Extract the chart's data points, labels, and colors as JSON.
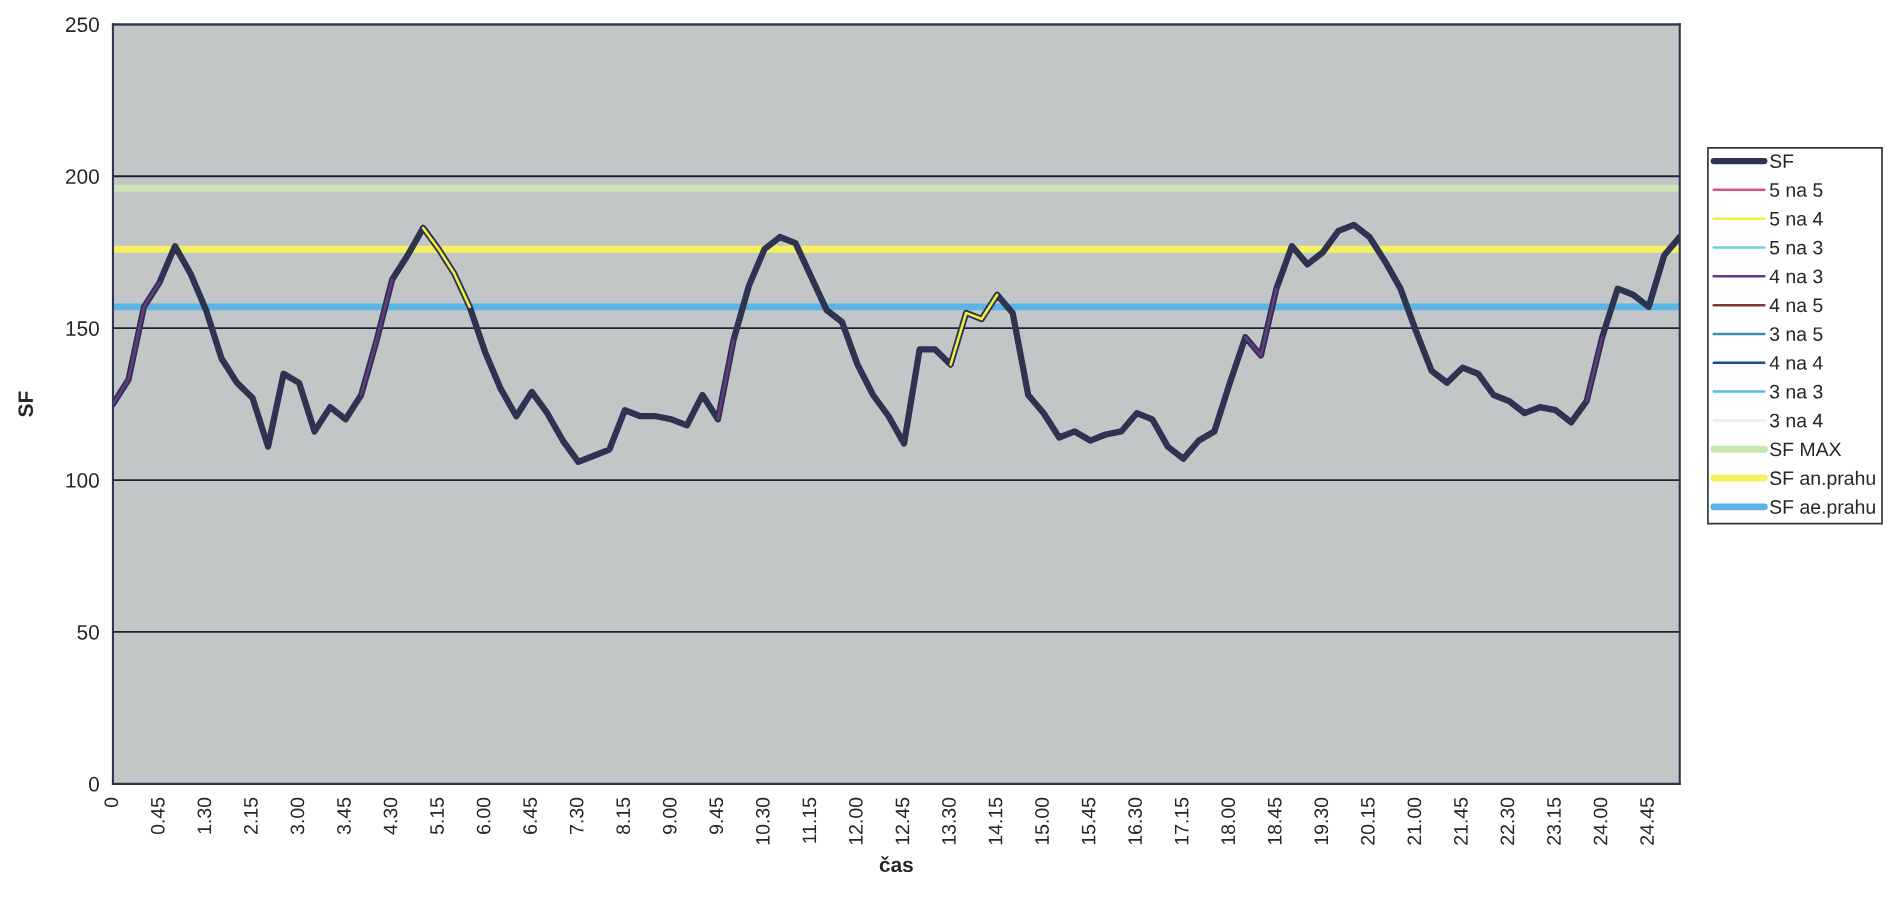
{
  "chart_data": {
    "type": "line",
    "xlabel": "čas",
    "ylabel": "SF",
    "categories": [
      "0",
      null,
      null,
      "0.45",
      null,
      null,
      "1.30",
      null,
      null,
      "2.15",
      null,
      null,
      "3.00",
      null,
      null,
      "3.45",
      null,
      null,
      "4.30",
      null,
      null,
      "5.15",
      null,
      null,
      "6.00",
      null,
      null,
      "6.45",
      null,
      null,
      "7.30",
      null,
      null,
      "8.15",
      null,
      null,
      "9.00",
      null,
      null,
      "9.45",
      null,
      null,
      "10.30",
      null,
      null,
      "11.15",
      null,
      null,
      "12.00",
      null,
      null,
      "12.45",
      null,
      null,
      "13.30",
      null,
      null,
      "14.15",
      null,
      null,
      "15.00",
      null,
      null,
      "15.45",
      null,
      null,
      "16.30",
      null,
      null,
      "17.15",
      null,
      null,
      "18.00",
      null,
      null,
      "18.45",
      null,
      null,
      "19.30",
      null,
      null,
      "20.15",
      null,
      null,
      "21.00",
      null,
      null,
      "21.45",
      null,
      null,
      "22.30",
      null,
      null,
      "23.15",
      null,
      null,
      "24.00",
      null,
      null,
      "24.45",
      null,
      null
    ],
    "series": [
      {
        "name": "SF",
        "color": "#2e3450",
        "values": [
          125,
          133,
          157,
          165,
          177,
          168,
          156,
          140,
          132,
          127,
          111,
          135,
          132,
          116,
          124,
          120,
          128,
          146,
          166,
          174,
          183,
          176,
          168,
          157,
          142,
          130,
          121,
          129,
          122,
          113,
          106,
          108,
          110,
          123,
          121,
          121,
          120,
          118,
          128,
          120,
          146,
          164,
          176,
          180,
          178,
          167,
          156,
          152,
          138,
          128,
          121,
          112,
          143,
          143,
          138,
          155,
          153,
          161,
          155,
          128,
          122,
          114,
          116,
          113,
          115,
          116,
          122,
          120,
          111,
          107,
          113,
          116,
          132,
          147,
          141,
          163,
          177,
          171,
          175,
          182,
          184,
          180,
          172,
          163,
          149,
          136,
          132,
          137,
          135,
          128,
          126,
          122,
          124,
          123,
          119,
          126,
          147,
          163,
          161,
          157,
          174,
          180
        ]
      },
      {
        "name": "5 na 5",
        "color": "#e0507a",
        "values": [
          null,
          null,
          null,
          null,
          null,
          null,
          null,
          null,
          null,
          null,
          null,
          null,
          null,
          null,
          null,
          null,
          null,
          null,
          null,
          null,
          null,
          null,
          null,
          null,
          null,
          null,
          null,
          null,
          null,
          null,
          null,
          null,
          null,
          null,
          null,
          null,
          null,
          null,
          null,
          null,
          null,
          null,
          null,
          null,
          null,
          null,
          null,
          null,
          null,
          null,
          null,
          null,
          null,
          null,
          null,
          null,
          null,
          null,
          null,
          null,
          null,
          null,
          null,
          null,
          null,
          null,
          null,
          null,
          null,
          null,
          null,
          null,
          null,
          null,
          null,
          null,
          null,
          null,
          null,
          null,
          null,
          null,
          null,
          null,
          null,
          null,
          null,
          null,
          null,
          null,
          null,
          null,
          null,
          null,
          null,
          null,
          null,
          null,
          null,
          null,
          null,
          null
        ]
      },
      {
        "name": "5 na 4",
        "color": "#f0f040",
        "values": [
          null,
          null,
          null,
          null,
          null,
          null,
          null,
          null,
          null,
          null,
          null,
          null,
          null,
          null,
          null,
          null,
          null,
          null,
          null,
          null,
          183,
          176,
          168,
          157,
          null,
          null,
          null,
          null,
          null,
          null,
          null,
          null,
          null,
          null,
          null,
          null,
          null,
          null,
          null,
          null,
          null,
          null,
          null,
          null,
          null,
          null,
          null,
          null,
          null,
          null,
          null,
          null,
          null,
          null,
          138,
          155,
          153,
          161,
          null,
          null,
          null,
          null,
          null,
          null,
          null,
          null,
          null,
          null,
          null,
          null,
          null,
          null,
          null,
          null,
          null,
          null,
          null,
          null,
          null,
          null,
          null,
          null,
          null,
          null,
          null,
          null,
          null,
          null,
          null,
          null,
          null,
          null,
          null,
          null,
          null,
          null,
          null,
          null,
          null,
          null,
          null,
          null
        ]
      },
      {
        "name": "5 na 3",
        "color": "#6ccfe0",
        "values": [
          null,
          null,
          null,
          null,
          null,
          null,
          null,
          null,
          null,
          null,
          null,
          null,
          null,
          null,
          null,
          null,
          null,
          null,
          null,
          null,
          null,
          null,
          null,
          null,
          null,
          null,
          null,
          null,
          null,
          null,
          null,
          null,
          null,
          null,
          null,
          null,
          null,
          null,
          null,
          null,
          null,
          null,
          null,
          null,
          null,
          null,
          null,
          null,
          null,
          null,
          null,
          null,
          null,
          null,
          null,
          null,
          null,
          null,
          null,
          null,
          null,
          null,
          null,
          null,
          null,
          null,
          null,
          null,
          null,
          null,
          null,
          null,
          null,
          null,
          null,
          null,
          null,
          null,
          null,
          null,
          null,
          null,
          null,
          null,
          null,
          null,
          null,
          null,
          null,
          null,
          null,
          null,
          null,
          null,
          null,
          null,
          null,
          null,
          null,
          null,
          null,
          null
        ]
      },
      {
        "name": "4 na 3",
        "color": "#6a3a80",
        "values": [
          125,
          133,
          157,
          165,
          null,
          null,
          null,
          null,
          null,
          null,
          null,
          null,
          null,
          null,
          null,
          null,
          128,
          146,
          166,
          null,
          null,
          null,
          null,
          null,
          null,
          null,
          null,
          null,
          null,
          null,
          null,
          null,
          null,
          null,
          null,
          null,
          null,
          null,
          null,
          120,
          146,
          null,
          null,
          null,
          null,
          null,
          null,
          null,
          null,
          null,
          null,
          null,
          null,
          null,
          null,
          null,
          null,
          null,
          null,
          null,
          null,
          null,
          null,
          null,
          null,
          null,
          null,
          null,
          null,
          null,
          null,
          null,
          null,
          147,
          141,
          163,
          null,
          null,
          null,
          null,
          null,
          null,
          null,
          null,
          null,
          null,
          null,
          null,
          null,
          null,
          null,
          null,
          null,
          null,
          null,
          126,
          147,
          null,
          null,
          null,
          null,
          null
        ]
      },
      {
        "name": "4 na 5",
        "color": "#7a3a3a",
        "values": [
          null,
          null,
          null,
          null,
          null,
          null,
          null,
          null,
          null,
          null,
          null,
          null,
          null,
          null,
          null,
          null,
          null,
          null,
          null,
          null,
          null,
          null,
          null,
          null,
          null,
          null,
          null,
          null,
          null,
          null,
          null,
          null,
          null,
          null,
          null,
          null,
          null,
          null,
          null,
          null,
          null,
          null,
          null,
          null,
          null,
          null,
          null,
          null,
          null,
          null,
          null,
          null,
          null,
          null,
          null,
          null,
          null,
          null,
          null,
          null,
          null,
          null,
          null,
          null,
          null,
          null,
          null,
          null,
          null,
          null,
          null,
          null,
          null,
          null,
          null,
          null,
          null,
          null,
          null,
          null,
          null,
          null,
          null,
          null,
          null,
          null,
          null,
          null,
          null,
          null,
          null,
          null,
          null,
          null,
          null,
          null,
          null,
          null,
          null,
          null,
          null,
          null
        ]
      },
      {
        "name": "3 na 5",
        "color": "#3a90a8",
        "values": [
          null,
          null,
          null,
          null,
          null,
          null,
          null,
          null,
          null,
          null,
          null,
          null,
          null,
          null,
          null,
          null,
          null,
          null,
          null,
          null,
          null,
          null,
          null,
          null,
          null,
          null,
          null,
          null,
          null,
          null,
          null,
          null,
          null,
          null,
          null,
          null,
          null,
          null,
          null,
          null,
          null,
          null,
          null,
          null,
          null,
          null,
          null,
          null,
          null,
          null,
          null,
          null,
          null,
          null,
          null,
          null,
          null,
          null,
          null,
          null,
          null,
          null,
          null,
          null,
          null,
          null,
          null,
          null,
          null,
          null,
          null,
          null,
          null,
          null,
          null,
          null,
          null,
          null,
          null,
          null,
          null,
          null,
          null,
          null,
          null,
          null,
          null,
          null,
          null,
          null,
          null,
          null,
          null,
          null,
          null,
          null,
          null,
          null,
          null,
          null,
          null,
          null
        ]
      },
      {
        "name": "4 na 4",
        "color": "#204a90",
        "values": [
          null,
          null,
          null,
          null,
          null,
          null,
          null,
          null,
          null,
          null,
          null,
          null,
          null,
          null,
          null,
          null,
          null,
          null,
          null,
          null,
          null,
          null,
          null,
          null,
          null,
          null,
          null,
          null,
          null,
          null,
          null,
          null,
          null,
          null,
          null,
          null,
          null,
          null,
          null,
          null,
          null,
          null,
          null,
          null,
          null,
          null,
          null,
          null,
          null,
          null,
          null,
          null,
          null,
          null,
          null,
          null,
          null,
          null,
          null,
          null,
          null,
          null,
          null,
          null,
          null,
          null,
          null,
          null,
          null,
          null,
          null,
          null,
          null,
          null,
          null,
          null,
          null,
          null,
          null,
          null,
          null,
          null,
          null,
          null,
          null,
          null,
          null,
          null,
          null,
          null,
          null,
          null,
          null,
          null,
          null,
          null,
          null,
          null,
          null,
          null,
          null,
          null
        ]
      },
      {
        "name": "3 na 3",
        "color": "#50c0f0",
        "values": [
          null,
          null,
          null,
          null,
          null,
          null,
          null,
          null,
          null,
          null,
          null,
          null,
          null,
          null,
          null,
          null,
          null,
          null,
          null,
          null,
          null,
          null,
          null,
          null,
          null,
          null,
          null,
          null,
          null,
          null,
          null,
          null,
          null,
          null,
          null,
          null,
          null,
          null,
          null,
          null,
          null,
          null,
          null,
          null,
          null,
          null,
          null,
          null,
          null,
          null,
          null,
          null,
          null,
          null,
          null,
          null,
          null,
          null,
          null,
          null,
          null,
          null,
          null,
          null,
          null,
          null,
          null,
          null,
          null,
          null,
          null,
          null,
          null,
          null,
          null,
          null,
          null,
          null,
          null,
          null,
          null,
          null,
          null,
          null,
          null,
          null,
          null,
          null,
          null,
          null,
          null,
          null,
          null,
          null,
          null,
          null,
          null,
          null,
          null,
          null,
          null,
          null
        ]
      },
      {
        "name": "3 na 4",
        "color": "#ececec",
        "values": [
          null,
          null,
          null,
          null,
          null,
          null,
          null,
          null,
          null,
          null,
          null,
          null,
          null,
          null,
          null,
          null,
          null,
          null,
          null,
          null,
          null,
          null,
          null,
          null,
          null,
          null,
          null,
          null,
          null,
          null,
          null,
          null,
          null,
          null,
          null,
          null,
          null,
          null,
          null,
          null,
          null,
          null,
          null,
          null,
          null,
          null,
          null,
          null,
          null,
          null,
          null,
          null,
          null,
          null,
          null,
          null,
          null,
          null,
          null,
          null,
          null,
          null,
          null,
          null,
          null,
          null,
          null,
          null,
          null,
          null,
          null,
          null,
          null,
          null,
          null,
          null,
          null,
          null,
          null,
          null,
          null,
          null,
          null,
          null,
          null,
          null,
          null,
          null,
          null,
          null,
          null,
          null,
          null,
          null,
          null,
          null,
          null,
          null,
          null,
          null,
          null,
          null
        ]
      }
    ],
    "ref_lines": [
      {
        "axis": "y",
        "value": 196,
        "label": "SF MAX",
        "color": "#c8e6b0"
      },
      {
        "axis": "y",
        "value": 176,
        "label": "SF an.prahu",
        "color": "#f5f060"
      },
      {
        "axis": "y",
        "value": 157,
        "label": "SF ae.prahu",
        "color": "#5ab4e6"
      }
    ],
    "ylim": [
      0,
      250
    ],
    "yticks": [
      0,
      50,
      100,
      150,
      200,
      250
    ],
    "grid": "y",
    "legend": "right",
    "marker": "none",
    "line_style": "solid"
  }
}
